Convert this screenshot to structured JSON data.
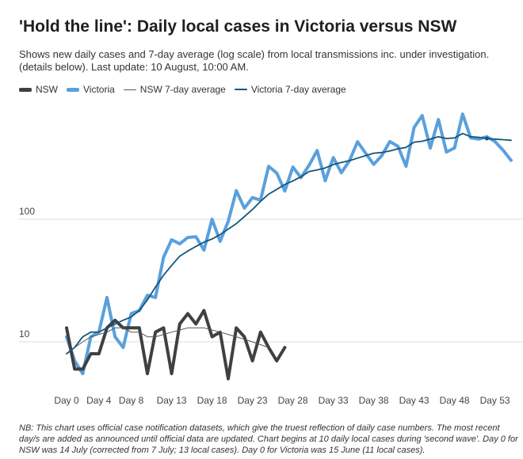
{
  "title": "'Hold the line': Daily local cases in Victoria versus NSW",
  "subtitle": "Shows new daily cases and 7-day average (log scale) from local transmissions inc. under investigation. (details below). Last update: 10 August, 10:00 AM.",
  "note": "NB: This chart uses official case notification datasets, which give the truest reflection of daily case numbers. The most recent day/s are added as announced until official data are updated. Chart begins at 10 daily local cases during 'second wave'. Day 0 for NSW was 14 July (corrected from 7 July; 13 local cases). Day 0 for Victoria was 15 June (11 local cases).",
  "colors": {
    "nsw": "#404040",
    "victoria": "#5aa0dc",
    "nsw_avg": "#555555",
    "victoria_avg": "#14557a",
    "grid": "#dddddd"
  },
  "chart_data": {
    "type": "line",
    "title": "'Hold the line': Daily local cases in Victoria versus NSW",
    "xlabel": "",
    "ylabel": "",
    "y_scale": "log",
    "ylim": [
      5,
      700
    ],
    "xlim": [
      -1,
      56
    ],
    "x_ticks": [
      0,
      4,
      8,
      13,
      18,
      23,
      28,
      33,
      38,
      43,
      48,
      53
    ],
    "x_tick_labels": [
      "Day 0",
      "Day 4",
      "Day 8",
      "Day 13",
      "Day 18",
      "Day 23",
      "Day 28",
      "Day 33",
      "Day 38",
      "Day 43",
      "Day 48",
      "Day 53"
    ],
    "y_ticks": [
      10,
      100
    ],
    "y_tick_labels": [
      "10",
      "100"
    ],
    "grid": true,
    "legend_position": "top-left",
    "series": [
      {
        "name": "NSW",
        "key": "nsw",
        "style": "thick",
        "x": [
          0,
          1,
          2,
          3,
          4,
          5,
          6,
          7,
          8,
          9,
          10,
          11,
          12,
          13,
          14,
          15,
          16,
          17,
          18,
          19,
          20,
          21,
          22,
          23,
          24,
          25,
          26,
          27
        ],
        "values": [
          13,
          6,
          6,
          8,
          8,
          13,
          15,
          13,
          13,
          13,
          5.5,
          12,
          13,
          5.5,
          14,
          17,
          14,
          18,
          11,
          12,
          5,
          13,
          11,
          7,
          12,
          9,
          7,
          9
        ]
      },
      {
        "name": "Victoria",
        "key": "victoria",
        "style": "thick",
        "x": [
          0,
          1,
          2,
          3,
          4,
          5,
          6,
          7,
          8,
          9,
          10,
          11,
          12,
          13,
          14,
          15,
          16,
          17,
          18,
          19,
          20,
          21,
          22,
          23,
          24,
          25,
          26,
          27,
          28,
          29,
          30,
          31,
          32,
          33,
          34,
          35,
          36,
          37,
          38,
          39,
          40,
          41,
          42,
          43,
          44,
          45,
          46,
          47,
          48,
          49,
          50,
          51,
          52,
          53,
          54,
          55
        ],
        "values": [
          11,
          7,
          5.5,
          11,
          12,
          23,
          11,
          9,
          17,
          18,
          24,
          23,
          49,
          68,
          63,
          71,
          72,
          56,
          100,
          66,
          96,
          171,
          123,
          150,
          143,
          270,
          238,
          170,
          266,
          218,
          275,
          363,
          206,
          318,
          239,
          300,
          428,
          345,
          280,
          330,
          430,
          393,
          270,
          560,
          700,
          380,
          650,
          353,
          381,
          720,
          460,
          450,
          470,
          430,
          365,
          302
        ]
      },
      {
        "name": "NSW 7-day average",
        "key": "nsw_avg",
        "style": "thin",
        "x": [
          0,
          1,
          2,
          3,
          4,
          5,
          6,
          7,
          8,
          9,
          10,
          11,
          12,
          13,
          14,
          15,
          16,
          17,
          18,
          19,
          20,
          21,
          22,
          23,
          24,
          25
        ],
        "values": [
          8,
          9,
          10,
          11,
          11.5,
          12,
          13,
          13,
          12,
          12,
          11,
          11,
          11.5,
          12,
          12.5,
          13,
          13,
          13,
          12.5,
          12,
          11.5,
          11,
          10.5,
          10,
          9.5,
          9
        ]
      },
      {
        "name": "Victoria 7-day average",
        "key": "victoria_avg",
        "style": "medium",
        "x": [
          0,
          1,
          2,
          3,
          4,
          5,
          6,
          7,
          8,
          9,
          10,
          11,
          12,
          13,
          14,
          15,
          16,
          17,
          18,
          19,
          20,
          21,
          22,
          23,
          24,
          25,
          26,
          27,
          28,
          29,
          30,
          31,
          32,
          33,
          34,
          35,
          36,
          37,
          38,
          39,
          40,
          41,
          42,
          43,
          44,
          45,
          46,
          47,
          48,
          49,
          50,
          51,
          52,
          53,
          54,
          55
        ],
        "values": [
          8,
          9,
          11,
          12,
          12,
          13,
          14,
          15,
          16,
          18,
          22,
          28,
          35,
          42,
          50,
          55,
          60,
          65,
          69,
          75,
          83,
          92,
          105,
          120,
          140,
          160,
          175,
          192,
          205,
          222,
          245,
          252,
          262,
          279,
          290,
          300,
          315,
          330,
          345,
          350,
          360,
          375,
          385,
          425,
          432,
          450,
          470,
          455,
          460,
          500,
          470,
          465,
          455,
          450,
          445,
          440
        ]
      }
    ]
  }
}
